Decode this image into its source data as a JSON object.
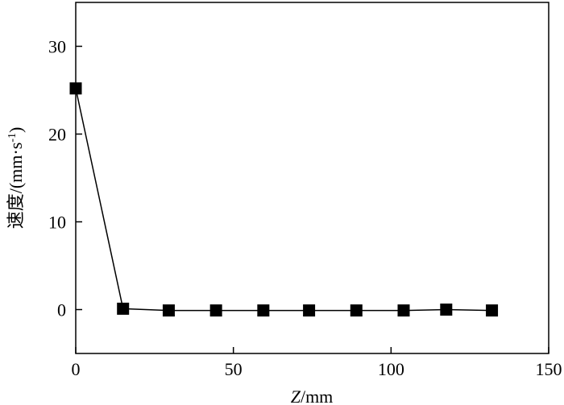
{
  "chart_data": {
    "type": "line",
    "xlabel": {
      "var": "Z",
      "unit": "/mm"
    },
    "ylabel": {
      "main": "速度/(mm·s",
      "sup": "-1",
      "close": ")"
    },
    "xlim": [
      0,
      150
    ],
    "ylim": [
      -5,
      35
    ],
    "xticks": [
      0,
      50,
      100,
      150
    ],
    "yticks": [
      0,
      10,
      20,
      30
    ],
    "grid": false,
    "series": [
      {
        "marker": "square",
        "color": "#000000",
        "x": [
          0,
          15,
          29.5,
          44.5,
          59.5,
          74,
          89,
          104,
          117.5,
          132
        ],
        "y": [
          25.2,
          0.1,
          -0.1,
          -0.1,
          -0.1,
          -0.1,
          -0.1,
          -0.1,
          0.0,
          -0.1
        ]
      }
    ]
  }
}
